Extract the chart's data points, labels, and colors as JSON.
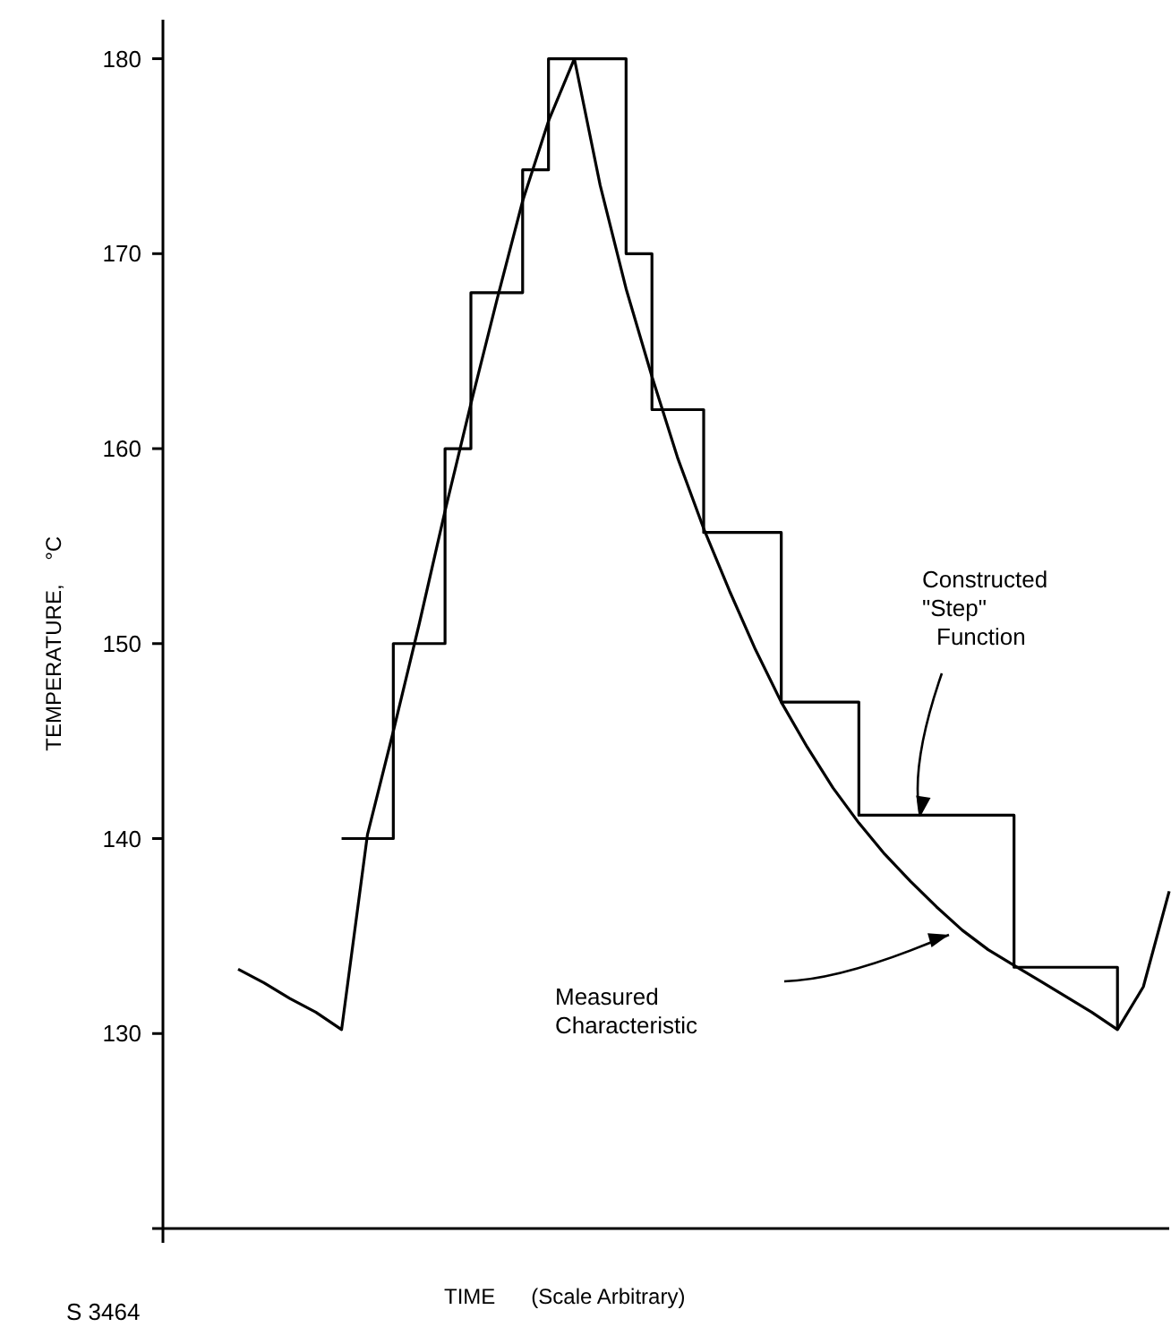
{
  "chart_data": {
    "type": "line",
    "xlabel": "TIME      (Scale Arbitrary)",
    "ylabel": "TEMPERATURE,    °C",
    "categories": [
      null,
      null,
      null,
      null,
      null,
      null,
      null,
      null,
      null,
      null,
      null,
      null,
      null,
      null,
      null,
      null,
      null,
      null,
      null,
      null,
      null,
      null,
      null,
      null,
      null,
      null,
      null,
      null,
      null,
      null,
      null,
      null,
      null,
      null,
      null,
      null,
      null
    ],
    "ylim": [
      120,
      182
    ],
    "yticks": [
      130,
      140,
      150,
      160,
      170,
      180
    ],
    "tick_labels": "y",
    "marker": "none",
    "line_style": "solid",
    "series": [
      {
        "color": "#000000",
        "values": [
          133.3,
          132.6,
          131.8,
          131.1,
          130.2,
          140.2,
          145.5,
          151,
          156.8,
          162.3,
          167.6,
          172.7,
          176.8,
          180,
          173.5,
          168.2,
          163.7,
          159.5,
          155.9,
          152.7,
          149.7,
          147,
          144.7,
          142.6,
          140.8,
          139.2,
          137.8,
          136.5,
          135.3,
          134.3,
          133.5,
          132.7,
          131.9,
          131.1,
          130.2,
          132.4,
          137.3
        ]
      },
      {
        "type": "step",
        "color": "#000000",
        "values": [
          null,
          null,
          null,
          null,
          140,
          140,
          150,
          150,
          160,
          168,
          168,
          174.3,
          180,
          180,
          180,
          170,
          162,
          162,
          155.7,
          155.7,
          155.7,
          147,
          147,
          147,
          141.2,
          141.2,
          141.2,
          141.2,
          141.2,
          141.2,
          133.4,
          133.4,
          133.4,
          133.4,
          130.2,
          null,
          null
        ]
      }
    ],
    "annotations": [
      "Constructed \"Step\" Function",
      "Measured Characteristic",
      "S 3464"
    ]
  }
}
